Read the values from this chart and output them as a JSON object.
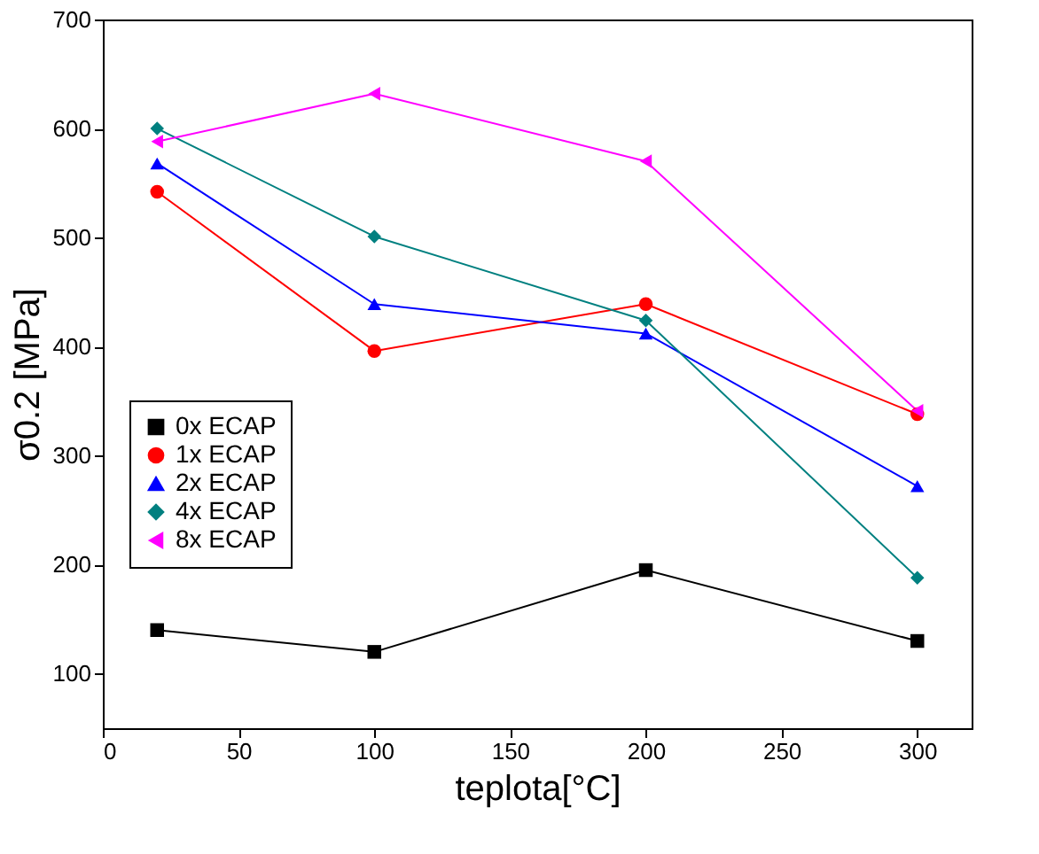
{
  "chart_data": {
    "type": "line",
    "xlabel": "teplota[°C]",
    "ylabel": "σ0.2 [MPa]",
    "x": [
      20,
      100,
      200,
      300
    ],
    "xlim": [
      0,
      320
    ],
    "xticks": [
      0,
      50,
      100,
      150,
      200,
      250,
      300
    ],
    "ylim": [
      50,
      700
    ],
    "yticks": [
      100,
      200,
      300,
      400,
      500,
      600,
      700
    ],
    "grid": false,
    "legend": "left",
    "line_style": "solid",
    "series": [
      {
        "name": "0x ECAP",
        "color": "#000000",
        "marker": "square",
        "values": [
          140,
          120,
          195,
          130
        ]
      },
      {
        "name": "1x ECAP",
        "color": "#ff0000",
        "marker": "circle",
        "values": [
          542,
          396,
          439,
          338
        ]
      },
      {
        "name": "2x ECAP",
        "color": "#0000ff",
        "marker": "triangle",
        "values": [
          568,
          439,
          412,
          272
        ]
      },
      {
        "name": "4x ECAP",
        "color": "#008080",
        "marker": "diamond",
        "values": [
          600,
          501,
          424,
          188
        ]
      },
      {
        "name": "8x ECAP",
        "color": "#ff00ff",
        "marker": "triangle-left",
        "values": [
          588,
          632,
          570,
          341
        ]
      }
    ]
  }
}
